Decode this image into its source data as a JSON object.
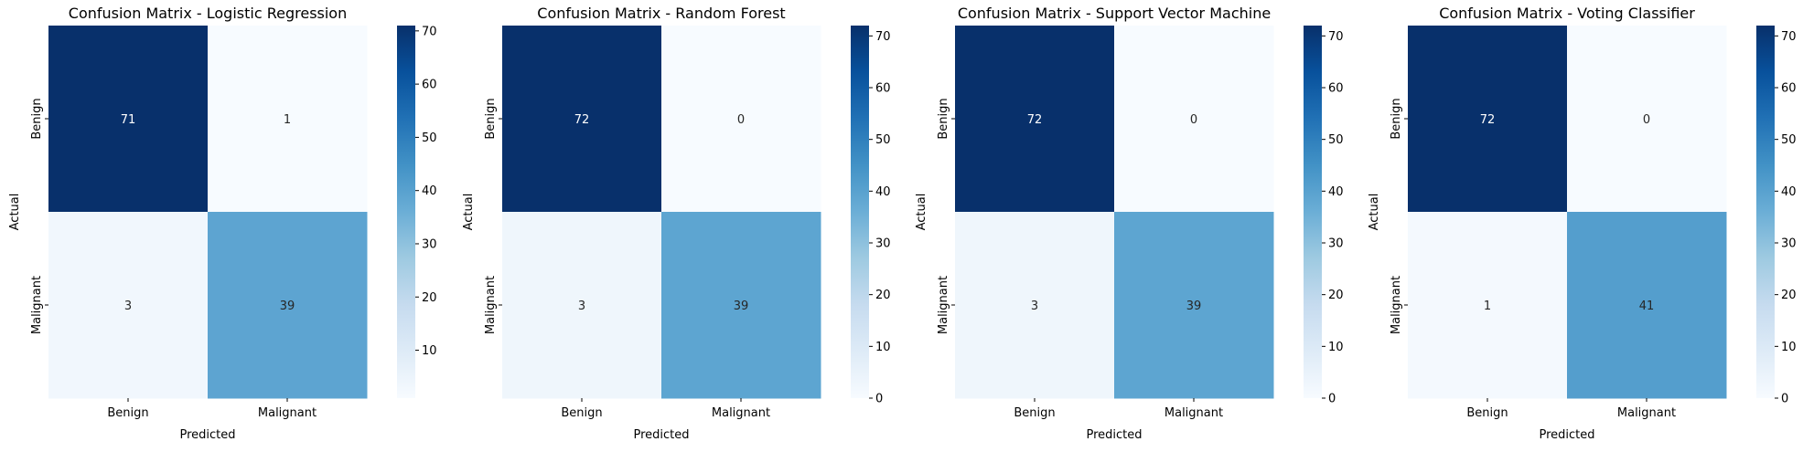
{
  "chart_data": [
    {
      "type": "heatmap",
      "title": "Confusion Matrix - Logistic Regression",
      "xlabel": "Predicted",
      "ylabel": "Actual",
      "x_categories": [
        "Benign",
        "Malignant"
      ],
      "y_categories": [
        "Benign",
        "Malignant"
      ],
      "values": [
        [
          71,
          1
        ],
        [
          3,
          39
        ]
      ],
      "colorbar": {
        "colormap": "Blues",
        "min": 1,
        "max": 71,
        "ticks": [
          10,
          20,
          30,
          40,
          50,
          60,
          70
        ]
      }
    },
    {
      "type": "heatmap",
      "title": "Confusion Matrix - Random Forest",
      "xlabel": "Predicted",
      "ylabel": "Actual",
      "x_categories": [
        "Benign",
        "Malignant"
      ],
      "y_categories": [
        "Benign",
        "Malignant"
      ],
      "values": [
        [
          72,
          0
        ],
        [
          3,
          39
        ]
      ],
      "colorbar": {
        "colormap": "Blues",
        "min": 0,
        "max": 72,
        "ticks": [
          0,
          10,
          20,
          30,
          40,
          50,
          60,
          70
        ]
      }
    },
    {
      "type": "heatmap",
      "title": "Confusion Matrix - Support Vector Machine",
      "xlabel": "Predicted",
      "ylabel": "Actual",
      "x_categories": [
        "Benign",
        "Malignant"
      ],
      "y_categories": [
        "Benign",
        "Malignant"
      ],
      "values": [
        [
          72,
          0
        ],
        [
          3,
          39
        ]
      ],
      "colorbar": {
        "colormap": "Blues",
        "min": 0,
        "max": 72,
        "ticks": [
          0,
          10,
          20,
          30,
          40,
          50,
          60,
          70
        ]
      }
    },
    {
      "type": "heatmap",
      "title": "Confusion Matrix - Voting Classifier",
      "xlabel": "Predicted",
      "ylabel": "Actual",
      "x_categories": [
        "Benign",
        "Malignant"
      ],
      "y_categories": [
        "Benign",
        "Malignant"
      ],
      "values": [
        [
          72,
          0
        ],
        [
          1,
          41
        ]
      ],
      "colorbar": {
        "colormap": "Blues",
        "min": 0,
        "max": 72,
        "ticks": [
          0,
          10,
          20,
          30,
          40,
          50,
          60,
          70
        ]
      }
    }
  ]
}
